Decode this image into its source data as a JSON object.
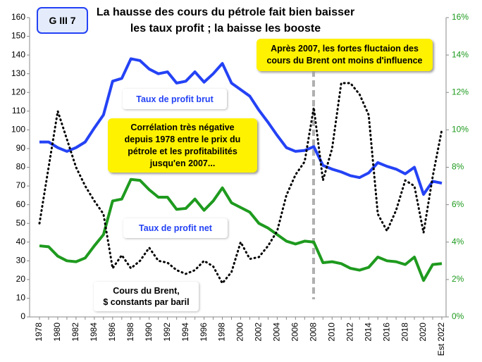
{
  "chart_data": {
    "type": "line",
    "badge": "G III 7",
    "title": [
      "La hausse des cours du pétrole fait bien baisser",
      "les taux profit ; la baisse les booste"
    ],
    "annotations": [
      [
        "Après 2007, les fortes fluctaion des",
        "cours du Brent ont moins d'influence"
      ],
      [
        "Corrélation très  négative",
        "depuis 1978 entre le prix du",
        "pétrole et les  profitabilités",
        "jusqu'en 2007..."
      ]
    ],
    "categories": [
      "1978",
      null,
      "1980",
      null,
      "1982",
      null,
      "1984",
      null,
      "1986",
      null,
      "1988",
      null,
      "1990",
      null,
      "1992",
      null,
      "1994",
      null,
      "1996",
      null,
      "1998",
      null,
      "2000",
      null,
      "2002",
      null,
      "2004",
      null,
      "2006",
      null,
      "2008",
      null,
      "2010",
      null,
      "2012",
      null,
      "2014",
      null,
      "2016",
      null,
      "2018",
      null,
      "2020",
      null,
      "Est 2022"
    ],
    "series": [
      {
        "name": "Taux de profit brut",
        "color": "#2442f5",
        "axis": "y2",
        "values": [
          9.35,
          9.35,
          9.05,
          8.85,
          9.05,
          9.35,
          10.1,
          10.8,
          12.6,
          12.75,
          13.8,
          13.7,
          13.25,
          13.0,
          13.1,
          12.5,
          12.6,
          13.1,
          12.55,
          13.0,
          13.55,
          12.5,
          12.15,
          11.8,
          11.05,
          10.4,
          9.7,
          9.05,
          8.85,
          8.9,
          9.1,
          8.1,
          7.9,
          7.75,
          7.55,
          7.45,
          7.7,
          8.25,
          8.05,
          7.9,
          7.65,
          8.0,
          6.55,
          7.25,
          7.15
        ]
      },
      {
        "name": "Taux de profit net",
        "color": "#1e9a1e",
        "axis": "y2",
        "values": [
          3.8,
          3.75,
          3.25,
          3.0,
          2.95,
          3.15,
          3.8,
          4.4,
          6.2,
          6.3,
          7.35,
          7.3,
          6.8,
          6.4,
          6.4,
          5.75,
          5.8,
          6.3,
          5.7,
          6.2,
          6.9,
          6.1,
          5.85,
          5.6,
          5.0,
          4.75,
          4.4,
          4.05,
          3.9,
          4.05,
          4.0,
          2.9,
          2.95,
          2.85,
          2.6,
          2.5,
          2.65,
          3.2,
          3.0,
          2.95,
          2.8,
          3.2,
          1.95,
          2.8,
          2.85
        ]
      },
      {
        "name": "Cours du Brent,\n$ constants par baril",
        "color": "#000000",
        "dashed": true,
        "values": [
          50,
          80,
          110,
          95,
          80,
          70,
          62,
          55,
          26,
          33,
          26,
          30,
          37,
          30,
          29,
          25,
          23,
          25,
          30,
          27,
          18,
          24,
          40,
          31,
          32,
          38,
          46,
          65,
          76,
          83,
          112,
          73,
          90,
          125,
          125,
          119,
          108,
          55,
          46,
          57,
          73,
          70,
          45,
          75,
          100
        ]
      }
    ],
    "ylim": [
      0,
      160
    ],
    "yticks": [
      0,
      10,
      20,
      30,
      40,
      50,
      60,
      70,
      80,
      90,
      100,
      110,
      120,
      130,
      140,
      150,
      160
    ],
    "y2lim": [
      0,
      16
    ],
    "y2ticks": [
      {
        "value": 0,
        "label": "0%"
      },
      {
        "value": 2,
        "label": "2%"
      },
      {
        "value": 4,
        "label": "4%"
      },
      {
        "value": 6,
        "label": "6%"
      },
      {
        "value": 8,
        "label": "8%"
      },
      {
        "value": 10,
        "label": "10%"
      },
      {
        "value": 12,
        "label": "12%"
      },
      {
        "value": 14,
        "label": "14%"
      },
      {
        "value": 16,
        "label": "16%"
      }
    ],
    "y2_color": "#1e9a1e",
    "grid": false
  }
}
